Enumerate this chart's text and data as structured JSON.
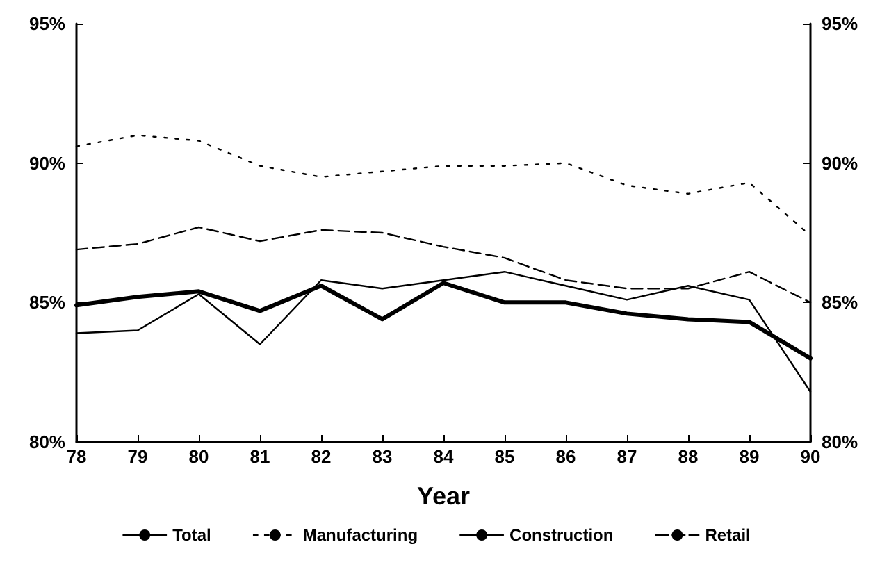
{
  "chart_data": {
    "type": "line",
    "xlabel": "Year",
    "x": [
      78,
      79,
      80,
      81,
      82,
      83,
      84,
      85,
      86,
      87,
      88,
      89,
      90
    ],
    "series": [
      {
        "name": "Total",
        "color": "#000000",
        "line_style": "solid",
        "values": [
          84.9,
          85.2,
          85.4,
          84.7,
          85.6,
          84.4,
          85.7,
          85.0,
          85.0,
          84.6,
          84.4,
          84.3,
          83.0
        ]
      },
      {
        "name": "Manufacturing",
        "color": "#000000",
        "line_style": "dotted",
        "values": [
          90.6,
          91.0,
          90.8,
          89.9,
          89.5,
          89.7,
          89.9,
          89.9,
          90.0,
          89.2,
          88.9,
          89.3,
          87.4
        ]
      },
      {
        "name": "Construction",
        "color": "#000000",
        "line_style": "solid",
        "values": [
          83.9,
          84.0,
          85.3,
          83.5,
          85.8,
          85.5,
          85.8,
          86.1,
          85.6,
          85.1,
          85.6,
          85.1,
          81.8
        ]
      },
      {
        "name": "Retail",
        "color": "#000000",
        "line_style": "dashed",
        "values": [
          86.9,
          87.1,
          87.7,
          87.2,
          87.6,
          87.5,
          87.0,
          86.6,
          85.8,
          85.5,
          85.5,
          86.1,
          85.0
        ]
      }
    ],
    "xlim": [
      78,
      90
    ],
    "xticks": [
      78,
      79,
      80,
      81,
      82,
      83,
      84,
      85,
      86,
      87,
      88,
      89,
      90
    ],
    "ylim": [
      80,
      95
    ],
    "yticks": [
      {
        "value": 80,
        "label": "80%"
      },
      {
        "value": 85,
        "label": "85%"
      },
      {
        "value": 90,
        "label": "90%"
      },
      {
        "value": 95,
        "label": "95%"
      }
    ],
    "y2lim": [
      80,
      95
    ],
    "y2ticks": [
      {
        "value": 80,
        "label": "80%"
      },
      {
        "value": 85,
        "label": "85%"
      },
      {
        "value": 90,
        "label": "90%"
      },
      {
        "value": 95,
        "label": "95%"
      }
    ],
    "grid": false,
    "legend": "bottom",
    "marker": "none"
  }
}
